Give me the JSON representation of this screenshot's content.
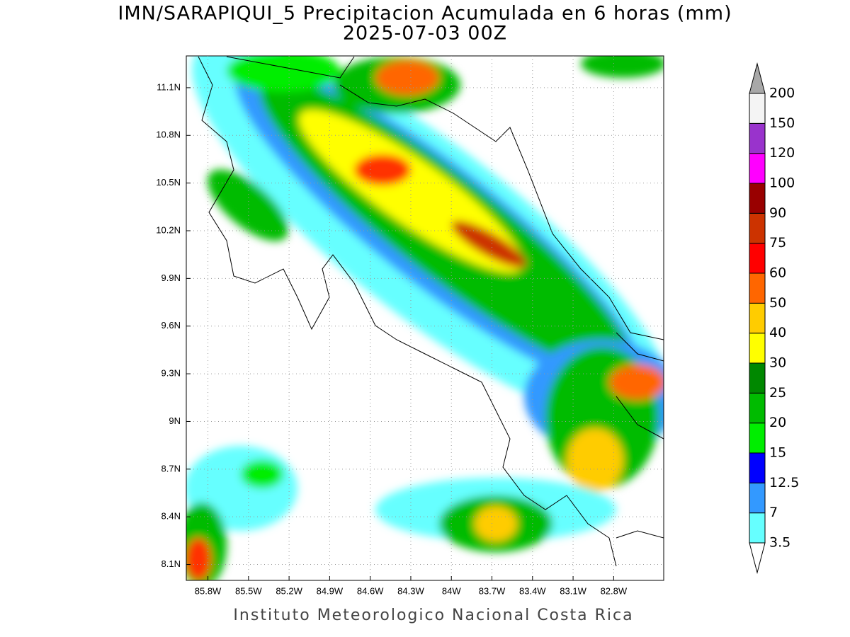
{
  "title": "IMN/SARAPIQUI_5 Precipitacion Acumulada en 6 horas (mm)",
  "subtitle": "2025-07-03 00Z",
  "map": {
    "xlim": [
      -85.96,
      -82.43
    ],
    "ylim": [
      8.0,
      11.3
    ],
    "grid": true,
    "xticks": [
      {
        "value": -85.8,
        "label": "85.8W"
      },
      {
        "value": -85.5,
        "label": "85.5W"
      },
      {
        "value": -85.2,
        "label": "85.2W"
      },
      {
        "value": -84.9,
        "label": "84.9W"
      },
      {
        "value": -84.6,
        "label": "84.6W"
      },
      {
        "value": -84.3,
        "label": "84.3W"
      },
      {
        "value": -84.0,
        "label": "84W"
      },
      {
        "value": -83.7,
        "label": "83.7W"
      },
      {
        "value": -83.4,
        "label": "83.4W"
      },
      {
        "value": -83.1,
        "label": "83.1W"
      },
      {
        "value": -82.8,
        "label": "82.8W"
      }
    ],
    "yticks": [
      {
        "value": 8.1,
        "label": "8.1N"
      },
      {
        "value": 8.4,
        "label": "8.4N"
      },
      {
        "value": 8.7,
        "label": "8.7N"
      },
      {
        "value": 9.0,
        "label": "9N"
      },
      {
        "value": 9.3,
        "label": "9.3N"
      },
      {
        "value": 9.6,
        "label": "9.6N"
      },
      {
        "value": 9.9,
        "label": "9.9N"
      },
      {
        "value": 10.2,
        "label": "10.2N"
      },
      {
        "value": 10.5,
        "label": "10.5N"
      },
      {
        "value": 10.8,
        "label": "10.8N"
      },
      {
        "value": 11.1,
        "label": "11.1N"
      }
    ]
  },
  "colorbar": {
    "levels": [
      3.5,
      7,
      12.5,
      15,
      20,
      25,
      30,
      40,
      50,
      60,
      75,
      90,
      100,
      120,
      150,
      200
    ],
    "colors": [
      "#66ffff",
      "#3399ff",
      "#0000ff",
      "#00ee00",
      "#00bb00",
      "#008800",
      "#ffff00",
      "#ffcc00",
      "#ff6600",
      "#ff0000",
      "#cc3300",
      "#990000",
      "#ff00ff",
      "#9933cc",
      "#f4f4f4"
    ],
    "under_color": "#ffffff",
    "over_color": "#a8a8a8"
  },
  "credit": "Instituto Meteorologico Nacional Costa Rica"
}
